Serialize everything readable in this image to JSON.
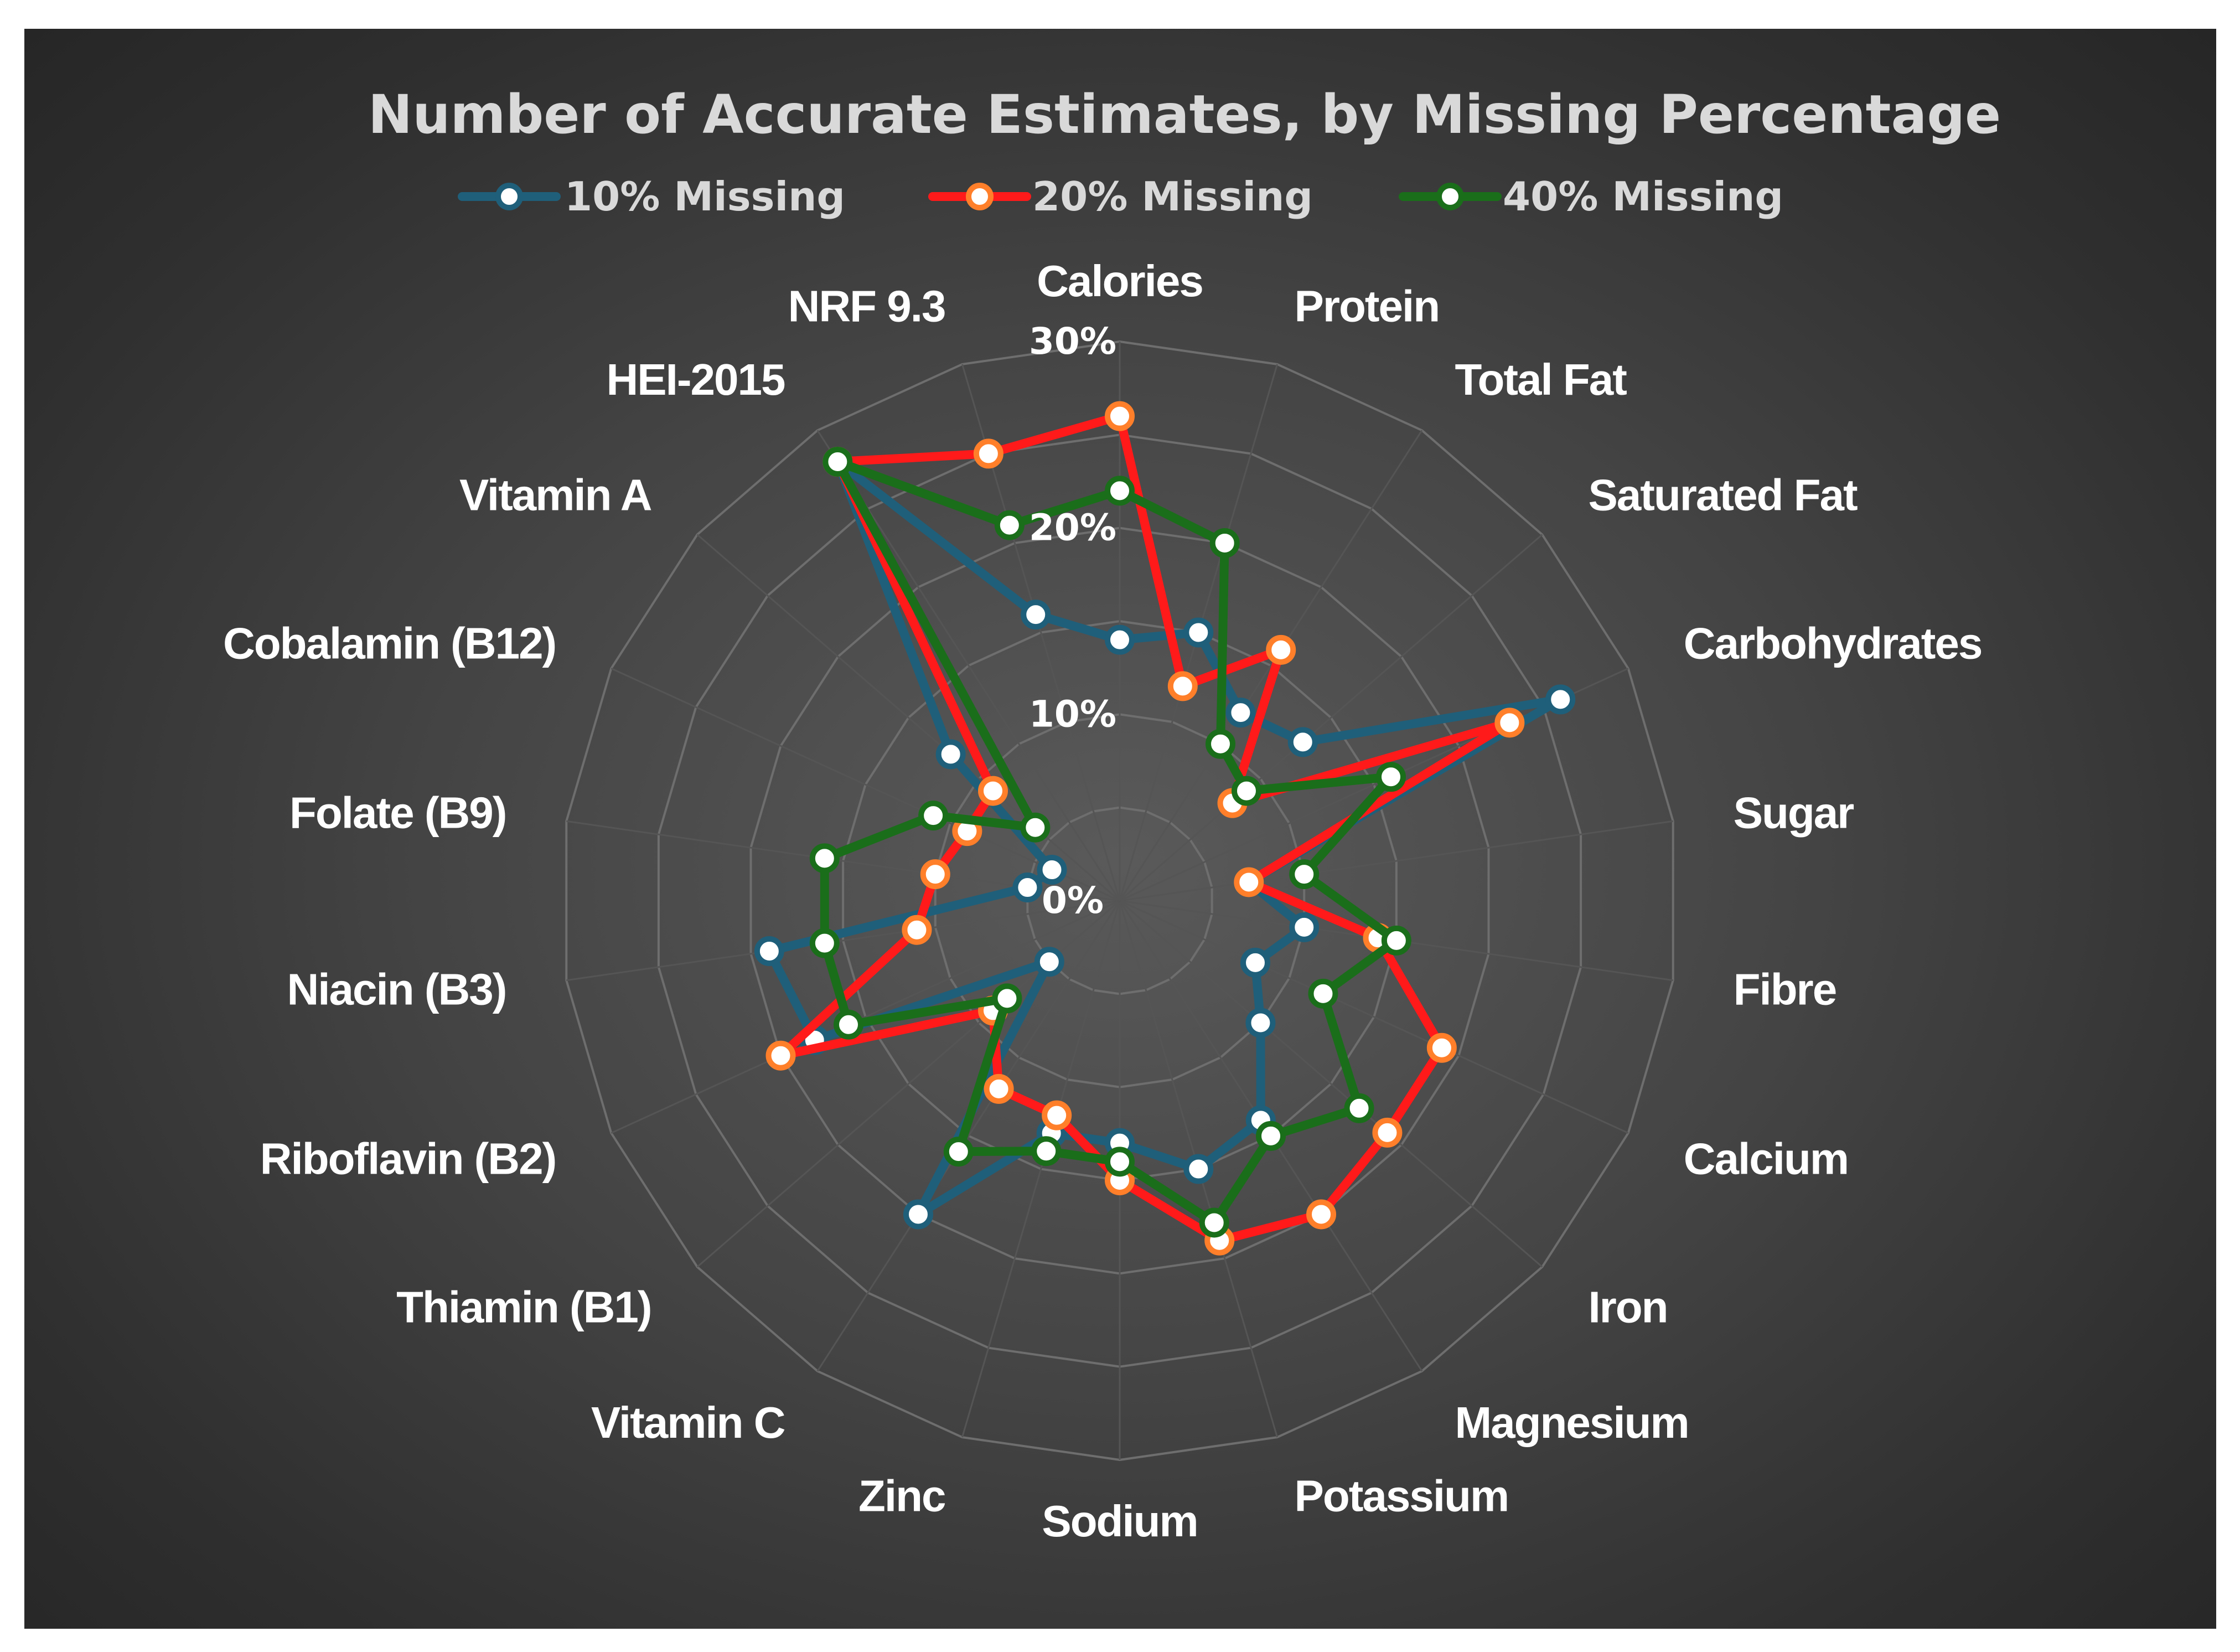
{
  "chart_data": {
    "type": "radar",
    "title": "Number of Accurate Estimates, by Missing Percentage",
    "categories": [
      "Calories",
      "Protein",
      "Total Fat",
      "Saturated Fat",
      "Carbohydrates",
      "Sugar",
      "Fibre",
      "Calcium",
      "Iron",
      "Magnesium",
      "Potassium",
      "Sodium",
      "Zinc",
      "Vitamin C",
      "Thiamin (B1)",
      "Riboflavin (B2)",
      "Niacin (B3)",
      "Folate (B9)",
      "Cobalamin (B12)",
      "Vitamin A",
      "HEI-2015",
      "NRF 9.3"
    ],
    "tick_labels": [
      "0%",
      "10%",
      "20%",
      "30%"
    ],
    "rlim": [
      0,
      30
    ],
    "grid": true,
    "legend_position": "top",
    "series": [
      {
        "name": "10% Missing",
        "color": "#1f5f7a",
        "values": [
          14,
          15,
          12,
          13,
          26,
          7,
          10,
          8,
          10,
          14,
          15,
          13,
          13,
          20,
          5,
          18,
          19,
          5,
          4,
          12,
          28,
          16
        ]
      },
      {
        "name": "20% Missing",
        "color": "#ff1a1a",
        "values": [
          26,
          12,
          16,
          8,
          23,
          7,
          14,
          19,
          19,
          20,
          19,
          15,
          12,
          12,
          9,
          20,
          11,
          10,
          9,
          9,
          28,
          25
        ]
      },
      {
        "name": "40% Missing",
        "color": "#1a6e1a",
        "values": [
          22,
          20,
          10,
          9,
          16,
          10,
          15,
          12,
          17,
          15,
          18,
          14,
          14,
          16,
          8,
          16,
          16,
          16,
          11,
          6,
          28,
          21
        ]
      }
    ]
  }
}
